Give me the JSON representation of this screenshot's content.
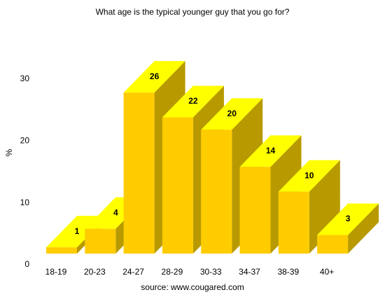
{
  "chart_data": {
    "type": "bar3d",
    "title": "What age is the typical younger guy that you go for?",
    "y_label": "%",
    "source": "source: www.cougared.com",
    "categories": [
      "18-19",
      "20-23",
      "24-27",
      "28-29",
      "30-33",
      "34-37",
      "38-39",
      "40+"
    ],
    "values": [
      1,
      4,
      26,
      22,
      20,
      14,
      10,
      3
    ],
    "colors": {
      "front": "#ffcc00",
      "top": "#ffff00",
      "side": "#b89a00"
    },
    "ylim": [
      0,
      35
    ],
    "yticks": [
      0,
      10,
      20,
      30
    ]
  }
}
